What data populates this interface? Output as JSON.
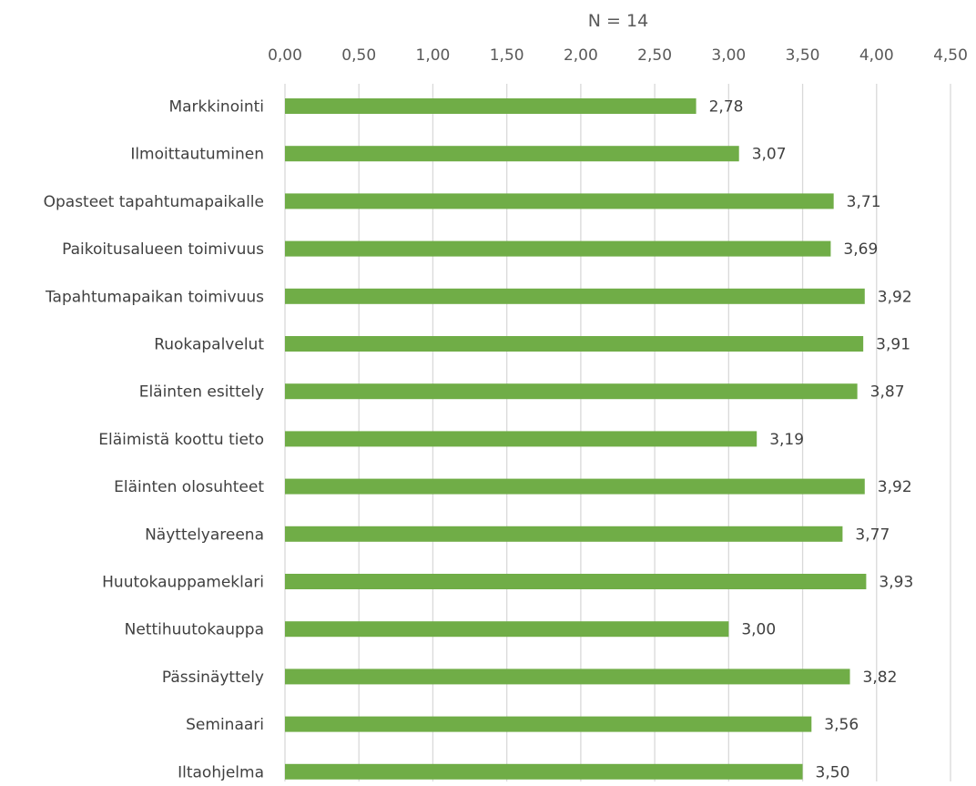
{
  "chart_data": {
    "type": "bar",
    "orientation": "horizontal",
    "title": "N = 14",
    "categories": [
      "Markkinointi",
      "Ilmoittautuminen",
      "Opasteet tapahtumapaikalle",
      "Paikoitusalueen toimivuus",
      "Tapahtumapaikan toimivuus",
      "Ruokapalvelut",
      "Eläinten esittely",
      "Eläimistä koottu tieto",
      "Eläinten olosuhteet",
      "Näyttelyareena",
      "Huutokauppameklari",
      "Nettihuutokauppa",
      "Pässinäyttely",
      "Seminaari",
      "Iltaohjelma"
    ],
    "values": [
      2.78,
      3.07,
      3.71,
      3.69,
      3.92,
      3.91,
      3.87,
      3.19,
      3.92,
      3.77,
      3.93,
      3.0,
      3.82,
      3.56,
      3.5
    ],
    "value_labels": [
      "2,78",
      "3,07",
      "3,71",
      "3,69",
      "3,92",
      "3,91",
      "3,87",
      "3,19",
      "3,92",
      "3,77",
      "3,93",
      "3,00",
      "3,82",
      "3,56",
      "3,50"
    ],
    "xlim": [
      0,
      4.5
    ],
    "x_ticks": [
      0,
      0.5,
      1,
      1.5,
      2,
      2.5,
      3,
      3.5,
      4,
      4.5
    ],
    "x_tick_labels": [
      "0,00",
      "0,50",
      "1,00",
      "1,50",
      "2,00",
      "2,50",
      "3,00",
      "3,50",
      "4,00",
      "4,50"
    ],
    "x_axis_position": "top",
    "grid": true,
    "legend": "none",
    "bar_color": "#70ad47",
    "grid_color": "#d9d9d9"
  }
}
